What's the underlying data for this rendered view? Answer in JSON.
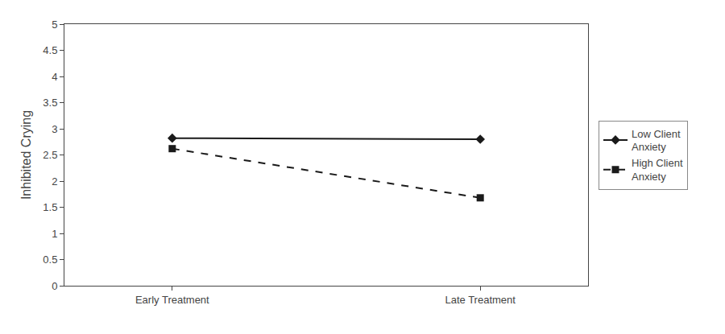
{
  "chart_data": {
    "type": "line",
    "categories": [
      "Early Treatment",
      "Late Treatment"
    ],
    "series": [
      {
        "name": "Low Client\nAnxiety",
        "color": "#1a1a1a",
        "marker": "diamond",
        "line_style": "solid",
        "values": [
          2.82,
          2.8
        ]
      },
      {
        "name": "High Client\nAnxiety",
        "color": "#1a1a1a",
        "marker": "square",
        "line_style": "dash",
        "values": [
          2.62,
          1.68
        ]
      }
    ],
    "y_label": "Inhibited Crying",
    "ylim": [
      0,
      5
    ],
    "yticks": [
      0,
      0.5,
      1,
      1.5,
      2,
      2.5,
      3,
      3.5,
      4,
      4.5,
      5
    ],
    "grid": false,
    "legend": "right"
  }
}
